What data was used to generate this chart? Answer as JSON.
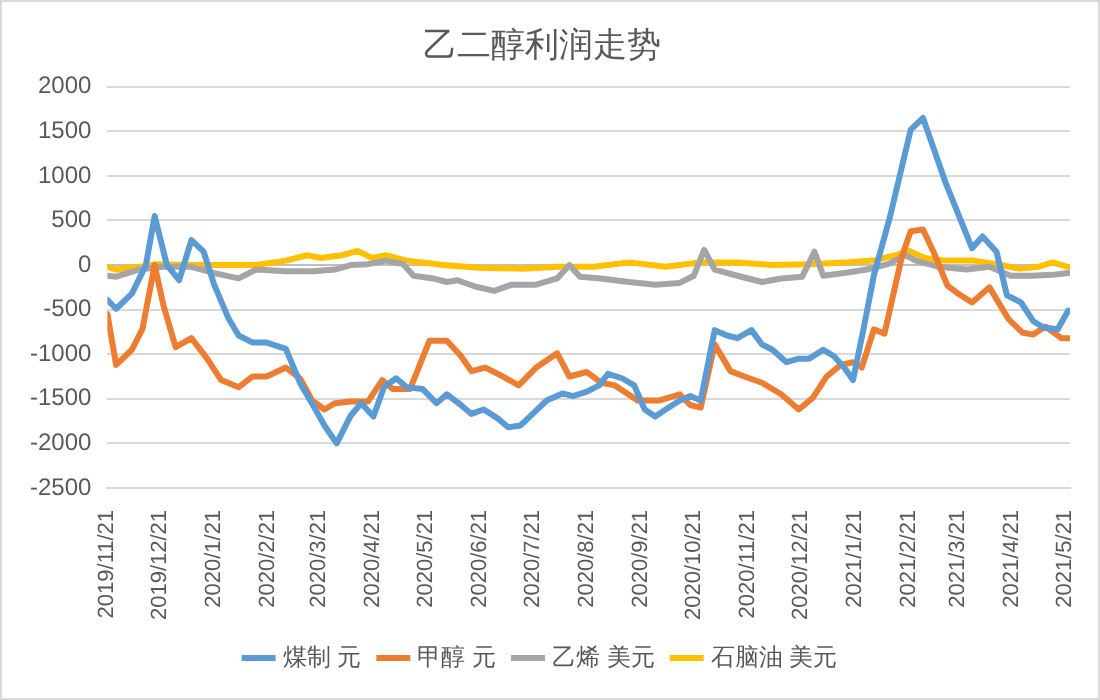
{
  "chart_data": {
    "type": "line",
    "title": "乙二醇利润走势",
    "legend": "bottom",
    "grid": "y",
    "marker": "none",
    "line_style": "solid",
    "xlim": [
      "2019-11-21",
      "2021-05-24"
    ],
    "ylim": [
      -2500,
      2000
    ],
    "yticks": [
      -2500,
      -2000,
      -1500,
      -1000,
      -500,
      0,
      500,
      1000,
      1500,
      2000
    ],
    "xticks": [
      {
        "value": "2019-11-21",
        "label": "2019/11/21"
      },
      {
        "value": "2019-12-21",
        "label": "2019/12/21"
      },
      {
        "value": "2020-01-21",
        "label": "2020/1/21"
      },
      {
        "value": "2020-02-21",
        "label": "2020/2/21"
      },
      {
        "value": "2020-03-21",
        "label": "2020/3/21"
      },
      {
        "value": "2020-04-21",
        "label": "2020/4/21"
      },
      {
        "value": "2020-05-21",
        "label": "2020/5/21"
      },
      {
        "value": "2020-06-21",
        "label": "2020/6/21"
      },
      {
        "value": "2020-07-21",
        "label": "2020/7/21"
      },
      {
        "value": "2020-08-21",
        "label": "2020/8/21"
      },
      {
        "value": "2020-09-21",
        "label": "2020/9/21"
      },
      {
        "value": "2020-10-21",
        "label": "2020/10/21"
      },
      {
        "value": "2020-11-21",
        "label": "2020/11/21"
      },
      {
        "value": "2020-12-21",
        "label": "2020/12/21"
      },
      {
        "value": "2021-01-21",
        "label": "2021/1/21"
      },
      {
        "value": "2021-02-21",
        "label": "2021/2/21"
      },
      {
        "value": "2021-03-21",
        "label": "2021/3/21"
      },
      {
        "value": "2021-04-21",
        "label": "2021/4/21"
      },
      {
        "value": "2021-05-21",
        "label": "2021/5/21"
      }
    ],
    "series": [
      {
        "name": "煤制 元",
        "color": "#5b9bd5",
        "x": [
          "2019-11-21",
          "2019-11-26",
          "2019-12-05",
          "2019-12-13",
          "2019-12-18",
          "2019-12-25",
          "2020-01-01",
          "2020-01-08",
          "2020-01-15",
          "2020-01-21",
          "2020-01-29",
          "2020-02-04",
          "2020-02-12",
          "2020-02-20",
          "2020-03-02",
          "2020-03-10",
          "2020-03-18",
          "2020-03-24",
          "2020-03-31",
          "2020-04-08",
          "2020-04-14",
          "2020-04-21",
          "2020-04-27",
          "2020-05-04",
          "2020-05-10",
          "2020-05-19",
          "2020-05-27",
          "2020-06-02",
          "2020-06-10",
          "2020-06-16",
          "2020-06-23",
          "2020-07-01",
          "2020-07-07",
          "2020-07-14",
          "2020-07-21",
          "2020-07-29",
          "2020-08-07",
          "2020-08-13",
          "2020-08-21",
          "2020-08-28",
          "2020-09-02",
          "2020-09-10",
          "2020-09-17",
          "2020-09-23",
          "2020-09-29",
          "2020-10-05",
          "2020-10-13",
          "2020-10-19",
          "2020-10-25",
          "2020-11-02",
          "2020-11-09",
          "2020-11-15",
          "2020-11-23",
          "2020-11-29",
          "2020-12-05",
          "2020-12-13",
          "2020-12-20",
          "2020-12-26",
          "2021-01-03",
          "2021-01-09",
          "2021-01-15",
          "2021-01-20",
          "2021-01-26",
          "2021-02-01",
          "2021-02-10",
          "2021-02-22",
          "2021-03-01",
          "2021-03-14",
          "2021-03-29",
          "2021-04-04",
          "2021-04-12",
          "2021-04-18",
          "2021-04-26",
          "2021-05-03",
          "2021-05-09",
          "2021-05-17",
          "2021-05-23"
        ],
        "values": [
          -390,
          -490,
          -320,
          0,
          550,
          0,
          -170,
          280,
          150,
          -220,
          -590,
          -790,
          -870,
          -870,
          -940,
          -1320,
          -1590,
          -1800,
          -2000,
          -1690,
          -1550,
          -1700,
          -1370,
          -1270,
          -1370,
          -1390,
          -1550,
          -1450,
          -1570,
          -1670,
          -1620,
          -1720,
          -1820,
          -1800,
          -1670,
          -1520,
          -1440,
          -1470,
          -1420,
          -1350,
          -1220,
          -1270,
          -1350,
          -1620,
          -1700,
          -1620,
          -1520,
          -1470,
          -1520,
          -730,
          -790,
          -820,
          -730,
          -890,
          -950,
          -1090,
          -1050,
          -1050,
          -950,
          -1020,
          -1150,
          -1290,
          -720,
          -110,
          530,
          1520,
          1650,
          920,
          190,
          320,
          150,
          -340,
          -420,
          -630,
          -700,
          -720,
          -510
        ]
      },
      {
        "name": "甲醇 元",
        "color": "#ed7d31",
        "x": [
          "2019-11-21",
          "2019-11-26",
          "2019-12-05",
          "2019-12-11",
          "2019-12-18",
          "2019-12-23",
          "2019-12-30",
          "2020-01-08",
          "2020-01-17",
          "2020-01-25",
          "2020-02-04",
          "2020-02-12",
          "2020-02-20",
          "2020-03-02",
          "2020-03-10",
          "2020-03-17",
          "2020-03-24",
          "2020-03-30",
          "2020-04-08",
          "2020-04-18",
          "2020-04-26",
          "2020-05-02",
          "2020-05-12",
          "2020-05-23",
          "2020-06-02",
          "2020-06-10",
          "2020-06-16",
          "2020-06-24",
          "2020-07-03",
          "2020-07-13",
          "2020-07-23",
          "2020-08-04",
          "2020-08-11",
          "2020-08-21",
          "2020-08-29",
          "2020-09-06",
          "2020-09-19",
          "2020-10-01",
          "2020-10-13",
          "2020-10-19",
          "2020-10-25",
          "2020-11-02",
          "2020-11-11",
          "2020-11-19",
          "2020-11-29",
          "2020-12-10",
          "2020-12-20",
          "2020-12-28",
          "2021-01-05",
          "2021-01-13",
          "2021-01-20",
          "2021-01-25",
          "2021-02-01",
          "2021-02-07",
          "2021-02-17",
          "2021-02-22",
          "2021-03-01",
          "2021-03-07",
          "2021-03-15",
          "2021-03-21",
          "2021-03-29",
          "2021-04-08",
          "2021-04-19",
          "2021-04-27",
          "2021-05-03",
          "2021-05-10",
          "2021-05-19",
          "2021-05-24"
        ],
        "values": [
          -550,
          -1120,
          -950,
          -720,
          0,
          -450,
          -920,
          -820,
          -1050,
          -1290,
          -1370,
          -1250,
          -1250,
          -1150,
          -1270,
          -1520,
          -1620,
          -1550,
          -1530,
          -1530,
          -1290,
          -1390,
          -1390,
          -850,
          -850,
          -1020,
          -1190,
          -1150,
          -1240,
          -1350,
          -1150,
          -990,
          -1250,
          -1200,
          -1320,
          -1350,
          -1520,
          -1520,
          -1450,
          -1570,
          -1600,
          -890,
          -1190,
          -1250,
          -1320,
          -1450,
          -1620,
          -1490,
          -1250,
          -1120,
          -1090,
          -1150,
          -720,
          -770,
          100,
          380,
          400,
          150,
          -230,
          -320,
          -420,
          -250,
          -610,
          -760,
          -780,
          -690,
          -820,
          -820
        ]
      },
      {
        "name": "乙烯 美元",
        "color": "#a5a5a5",
        "x": [
          "2019-11-21",
          "2019-11-26",
          "2019-12-09",
          "2019-12-23",
          "2020-01-08",
          "2020-01-21",
          "2020-02-04",
          "2020-02-14",
          "2020-03-02",
          "2020-03-18",
          "2020-03-30",
          "2020-04-08",
          "2020-04-18",
          "2020-04-28",
          "2020-05-08",
          "2020-05-14",
          "2020-05-25",
          "2020-06-02",
          "2020-06-08",
          "2020-06-18",
          "2020-06-29",
          "2020-07-09",
          "2020-07-23",
          "2020-08-04",
          "2020-08-11",
          "2020-08-17",
          "2020-08-29",
          "2020-09-14",
          "2020-09-29",
          "2020-10-13",
          "2020-10-21",
          "2020-10-27",
          "2020-11-02",
          "2020-11-15",
          "2020-11-29",
          "2020-12-10",
          "2020-12-22",
          "2020-12-29",
          "2021-01-03",
          "2021-01-15",
          "2021-01-28",
          "2021-02-09",
          "2021-02-19",
          "2021-02-25",
          "2021-03-10",
          "2021-03-26",
          "2021-04-08",
          "2021-04-20",
          "2021-05-02",
          "2021-05-14",
          "2021-05-23"
        ],
        "values": [
          -120,
          -130,
          -50,
          -20,
          -20,
          -90,
          -150,
          -50,
          -70,
          -70,
          -50,
          0,
          10,
          50,
          10,
          -120,
          -150,
          -190,
          -170,
          -240,
          -290,
          -220,
          -220,
          -150,
          0,
          -130,
          -150,
          -190,
          -220,
          -200,
          -120,
          170,
          -50,
          -120,
          -190,
          -150,
          -130,
          150,
          -120,
          -90,
          -50,
          10,
          110,
          50,
          -20,
          -50,
          -20,
          -120,
          -120,
          -110,
          -90
        ]
      },
      {
        "name": "石脑油 美元",
        "color": "#ffc000",
        "x": [
          "2019-11-21",
          "2019-11-26",
          "2019-12-09",
          "2019-12-19",
          "2020-01-08",
          "2020-01-29",
          "2020-02-14",
          "2020-03-02",
          "2020-03-14",
          "2020-03-22",
          "2020-04-03",
          "2020-04-12",
          "2020-04-20",
          "2020-04-28",
          "2020-05-10",
          "2020-05-31",
          "2020-06-20",
          "2020-07-15",
          "2020-08-04",
          "2020-08-25",
          "2020-09-14",
          "2020-10-05",
          "2020-10-25",
          "2020-11-15",
          "2020-12-05",
          "2020-12-26",
          "2021-01-15",
          "2021-02-01",
          "2021-02-13",
          "2021-02-21",
          "2021-03-02",
          "2021-03-14",
          "2021-03-30",
          "2021-04-12",
          "2021-04-25",
          "2021-05-06",
          "2021-05-14",
          "2021-05-23"
        ],
        "values": [
          -20,
          -50,
          -20,
          10,
          0,
          0,
          0,
          50,
          110,
          80,
          110,
          160,
          80,
          110,
          50,
          0,
          -30,
          -40,
          -20,
          -20,
          30,
          -20,
          30,
          30,
          0,
          10,
          30,
          50,
          110,
          160,
          80,
          50,
          50,
          10,
          -40,
          -20,
          30,
          -20
        ]
      }
    ]
  }
}
